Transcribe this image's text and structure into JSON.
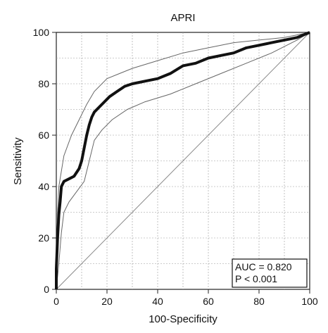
{
  "chart_data": {
    "type": "line",
    "title": "APRI",
    "xlabel": "100-Specificity",
    "ylabel": "Sensitivity",
    "xlim": [
      0,
      100
    ],
    "ylim": [
      0,
      100
    ],
    "xticks": [
      0,
      20,
      40,
      60,
      80,
      100
    ],
    "yticks": [
      0,
      20,
      40,
      60,
      80,
      100
    ],
    "grid": true,
    "annotation": [
      "AUC = 0.820",
      "P < 0.001"
    ],
    "series": [
      {
        "role": "roc",
        "values": [
          [
            0,
            0
          ],
          [
            0,
            8
          ],
          [
            0.5,
            20
          ],
          [
            1,
            29
          ],
          [
            1.5,
            34
          ],
          [
            2,
            40
          ],
          [
            3,
            42
          ],
          [
            5,
            43
          ],
          [
            7,
            44
          ],
          [
            9,
            47
          ],
          [
            10,
            50
          ],
          [
            11,
            55
          ],
          [
            12,
            60
          ],
          [
            13,
            64
          ],
          [
            14,
            67
          ],
          [
            15,
            69
          ],
          [
            17,
            71
          ],
          [
            19,
            73
          ],
          [
            21,
            75
          ],
          [
            24,
            77
          ],
          [
            27,
            79
          ],
          [
            30,
            80
          ],
          [
            35,
            81
          ],
          [
            40,
            82
          ],
          [
            45,
            84
          ],
          [
            50,
            87
          ],
          [
            55,
            88
          ],
          [
            60,
            90
          ],
          [
            65,
            91
          ],
          [
            70,
            92
          ],
          [
            75,
            94
          ],
          [
            80,
            95
          ],
          [
            85,
            96
          ],
          [
            90,
            97
          ],
          [
            95,
            98
          ],
          [
            100,
            100
          ]
        ]
      },
      {
        "role": "ci-upper",
        "values": [
          [
            0,
            0
          ],
          [
            0.5,
            30
          ],
          [
            1,
            40
          ],
          [
            3,
            52
          ],
          [
            6,
            60
          ],
          [
            9,
            66
          ],
          [
            12,
            72
          ],
          [
            15,
            77
          ],
          [
            20,
            82
          ],
          [
            25,
            84
          ],
          [
            30,
            86
          ],
          [
            40,
            89
          ],
          [
            50,
            92
          ],
          [
            60,
            94
          ],
          [
            70,
            96
          ],
          [
            80,
            97
          ],
          [
            90,
            98
          ],
          [
            100,
            100
          ]
        ]
      },
      {
        "role": "ci-lower",
        "values": [
          [
            0,
            0
          ],
          [
            1,
            10
          ],
          [
            2,
            22
          ],
          [
            3,
            30
          ],
          [
            5,
            34
          ],
          [
            8,
            38
          ],
          [
            11,
            42
          ],
          [
            13,
            50
          ],
          [
            15,
            58
          ],
          [
            18,
            62
          ],
          [
            22,
            66
          ],
          [
            28,
            70
          ],
          [
            35,
            73
          ],
          [
            45,
            76
          ],
          [
            55,
            80
          ],
          [
            65,
            84
          ],
          [
            75,
            88
          ],
          [
            85,
            92
          ],
          [
            95,
            97
          ],
          [
            100,
            100
          ]
        ]
      },
      {
        "role": "reference",
        "values": [
          [
            0,
            0
          ],
          [
            100,
            100
          ]
        ]
      }
    ]
  }
}
